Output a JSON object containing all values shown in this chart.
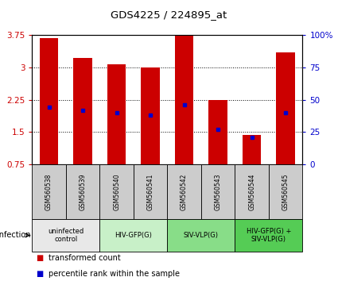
{
  "title": "GDS4225 / 224895_at",
  "samples": [
    "GSM560538",
    "GSM560539",
    "GSM560540",
    "GSM560541",
    "GSM560542",
    "GSM560543",
    "GSM560544",
    "GSM560545"
  ],
  "transformed_counts": [
    3.68,
    3.22,
    3.08,
    3.0,
    3.75,
    2.25,
    1.44,
    3.35
  ],
  "percentile_ranks": [
    44,
    42,
    40,
    38,
    46,
    27,
    21,
    40
  ],
  "ylim": [
    0.75,
    3.75
  ],
  "yticks": [
    0.75,
    1.5,
    2.25,
    3.0,
    3.75
  ],
  "ytick_labels": [
    "0.75",
    "1.5",
    "2.25",
    "3",
    "3.75"
  ],
  "y2ticks": [
    0,
    25,
    50,
    75,
    100
  ],
  "y2tick_labels": [
    "0",
    "25",
    "50",
    "75",
    "100%"
  ],
  "bar_color": "#cc0000",
  "dot_color": "#0000cc",
  "bar_width": 0.55,
  "groups": [
    {
      "label": "uninfected\ncontrol",
      "start": 0,
      "end": 2,
      "color": "#e8e8e8"
    },
    {
      "label": "HIV-GFP(G)",
      "start": 2,
      "end": 4,
      "color": "#c8f0c8"
    },
    {
      "label": "SIV-VLP(G)",
      "start": 4,
      "end": 6,
      "color": "#88dd88"
    },
    {
      "label": "HIV-GFP(G) +\nSIV-VLP(G)",
      "start": 6,
      "end": 8,
      "color": "#55cc55"
    }
  ],
  "infection_label": "infection",
  "legend_items": [
    {
      "label": "transformed count",
      "color": "#cc0000"
    },
    {
      "label": "percentile rank within the sample",
      "color": "#0000cc"
    }
  ],
  "bg_color": "#ffffff",
  "sample_bg_color": "#cccccc",
  "gridline_color": "#000000",
  "gridline_style": ":"
}
